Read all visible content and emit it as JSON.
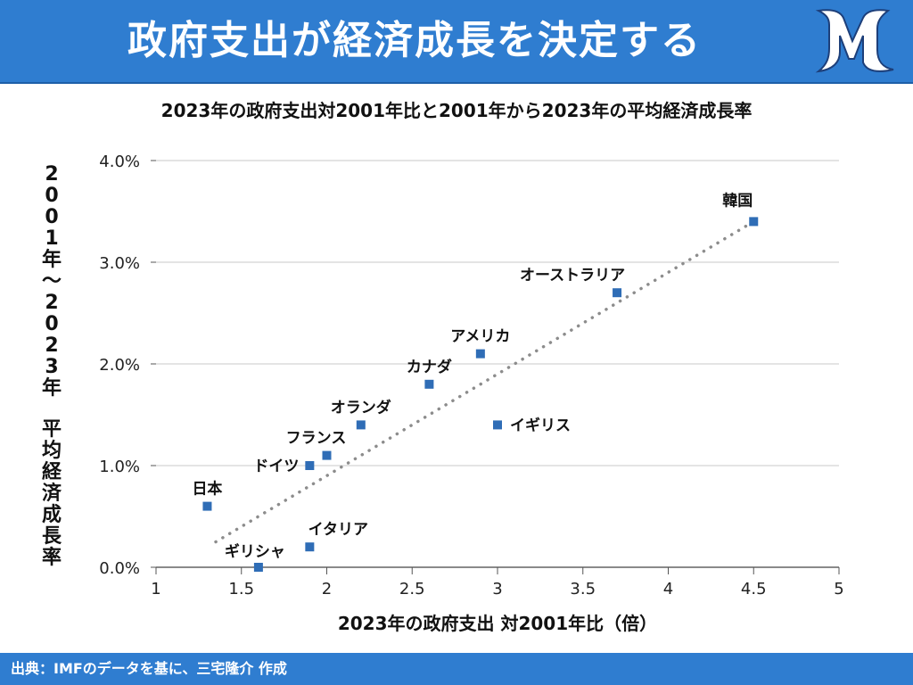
{
  "header": {
    "title": "政府支出が経済成長を決定する",
    "logo": "mr-logo"
  },
  "footer": {
    "source": "出典：IMFのデータを基に、三宅隆介 作成"
  },
  "colors": {
    "header_bg": "#2f7dd0",
    "point": "#2f6db6",
    "trendline": "#8c8c8c",
    "grid": "#c8c8c8"
  },
  "chart_data": {
    "type": "scatter",
    "title": "2023年の政府支出対2001年比と2001年から2023年の平均経済成長率",
    "xlabel": "2023年の政府支出 対2001年比（倍）",
    "ylabel": "2001年～2023年 平均経済成長率",
    "xlim": [
      1,
      5
    ],
    "ylim": [
      0,
      4.0
    ],
    "x_ticks": [
      "1",
      "1.5",
      "2",
      "2.5",
      "3",
      "3.5",
      "4",
      "4.5",
      "5"
    ],
    "y_ticks": [
      "0.0%",
      "1.0%",
      "2.0%",
      "3.0%",
      "4.0%"
    ],
    "grid": "horizontal",
    "trendline": {
      "style": "dotted",
      "from": [
        1.35,
        0.25
      ],
      "to": [
        4.5,
        3.4
      ]
    },
    "points": [
      {
        "label": "韓国",
        "x": 4.5,
        "y": 3.4
      },
      {
        "label": "オーストラリア",
        "x": 3.7,
        "y": 2.7
      },
      {
        "label": "アメリカ",
        "x": 2.9,
        "y": 2.1
      },
      {
        "label": "カナダ",
        "x": 2.6,
        "y": 1.8
      },
      {
        "label": "イギリス",
        "x": 3.0,
        "y": 1.4
      },
      {
        "label": "オランダ",
        "x": 2.2,
        "y": 1.4
      },
      {
        "label": "フランス",
        "x": 2.0,
        "y": 1.1
      },
      {
        "label": "ドイツ",
        "x": 1.9,
        "y": 1.0
      },
      {
        "label": "日本",
        "x": 1.3,
        "y": 0.6
      },
      {
        "label": "イタリア",
        "x": 1.9,
        "y": 0.2
      },
      {
        "label": "ギリシャ",
        "x": 1.6,
        "y": 0.0
      }
    ]
  }
}
